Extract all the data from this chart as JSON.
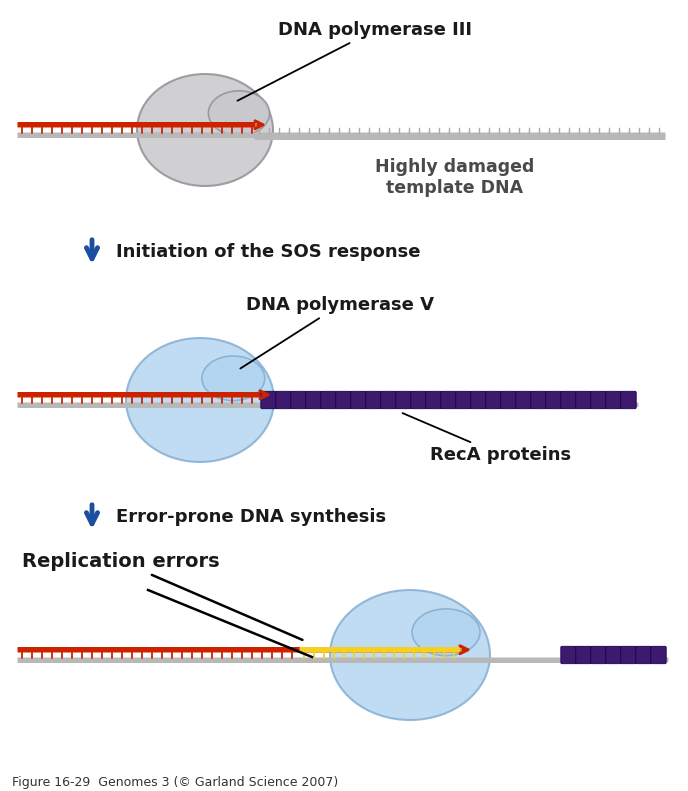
{
  "bg_color": "#ffffff",
  "dna_gray_color": "#b8b8b8",
  "dna_red_color": "#cc2200",
  "dna_purple_color": "#3d1a6e",
  "dna_yellow_color": "#f5d020",
  "arrow_color": "#1a4fa0",
  "text_dark": "#1a1a1a",
  "enzyme_gray_color": "#c8c8cc",
  "enzyme_gray_edge": "#909098",
  "enzyme_blue_color": "#b0d4f0",
  "enzyme_blue_edge": "#80aad0",
  "label1": "DNA polymerase III",
  "label2": "Highly damaged\ntemplate DNA",
  "arrow1_label": "Initiation of the SOS response",
  "label3": "DNA polymerase V",
  "label4": "RecA proteins",
  "arrow2_label": "Error-prone DNA synthesis",
  "label5": "Replication errors",
  "caption": "Figure 16-29  Genomes 3 (© Garland Science 2007)"
}
